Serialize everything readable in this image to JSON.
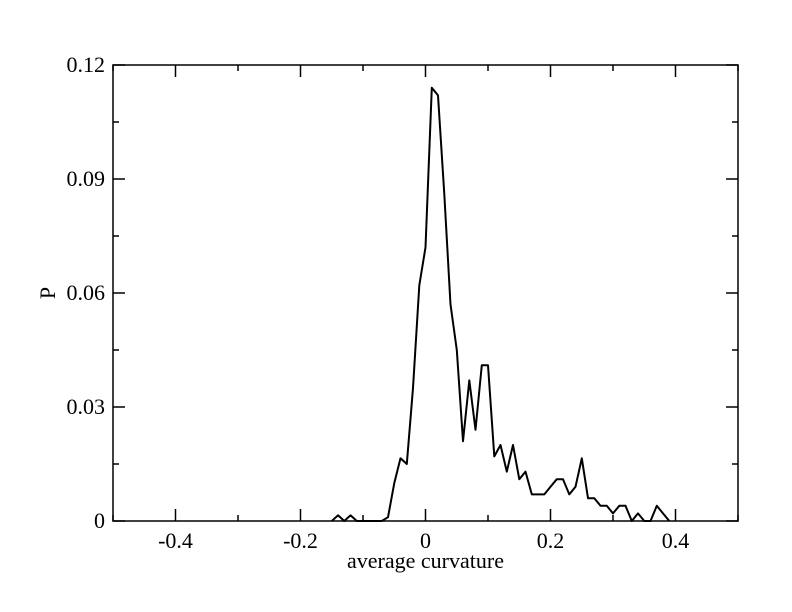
{
  "chart_data": {
    "type": "line",
    "xlabel": "average curvature",
    "ylabel": "P",
    "xlim": [
      -0.5,
      0.5
    ],
    "ylim": [
      0,
      0.12
    ],
    "xticks": [
      -0.4,
      -0.2,
      0,
      0.2,
      0.4
    ],
    "xtick_labels": [
      "-0.4",
      "-0.2",
      "0",
      "0.2",
      "0.4"
    ],
    "yticks": [
      0,
      0.03,
      0.06,
      0.09,
      0.12
    ],
    "ytick_labels": [
      "0",
      "0.03",
      "0.06",
      "0.09",
      "0.12"
    ],
    "xminor_step": 0.1,
    "yminor_step": 0.015,
    "grid": false,
    "line_color": "#000000",
    "series": [
      {
        "x": [
          -0.15,
          -0.14,
          -0.13,
          -0.12,
          -0.11,
          -0.1,
          -0.09,
          -0.08,
          -0.07,
          -0.06,
          -0.05,
          -0.04,
          -0.03,
          -0.02,
          -0.01,
          0.0,
          0.01,
          0.02,
          0.03,
          0.04,
          0.05,
          0.06,
          0.07,
          0.08,
          0.09,
          0.1,
          0.11,
          0.12,
          0.13,
          0.14,
          0.15,
          0.16,
          0.17,
          0.18,
          0.19,
          0.2,
          0.21,
          0.22,
          0.23,
          0.24,
          0.25,
          0.26,
          0.27,
          0.28,
          0.29,
          0.3,
          0.31,
          0.32,
          0.33,
          0.34,
          0.35,
          0.36,
          0.37,
          0.38,
          0.39
        ],
        "y": [
          0.0,
          0.0015,
          0.0,
          0.0015,
          0.0,
          0.0,
          0.0,
          0.0,
          0.0,
          0.001,
          0.01,
          0.0165,
          0.015,
          0.035,
          0.062,
          0.072,
          0.114,
          0.112,
          0.086,
          0.057,
          0.045,
          0.021,
          0.037,
          0.024,
          0.041,
          0.041,
          0.017,
          0.02,
          0.013,
          0.02,
          0.011,
          0.013,
          0.007,
          0.007,
          0.007,
          0.009,
          0.011,
          0.011,
          0.007,
          0.009,
          0.0165,
          0.006,
          0.006,
          0.004,
          0.004,
          0.002,
          0.004,
          0.004,
          0.0,
          0.002,
          0.0,
          0.0,
          0.004,
          0.002,
          0.0
        ]
      }
    ]
  }
}
